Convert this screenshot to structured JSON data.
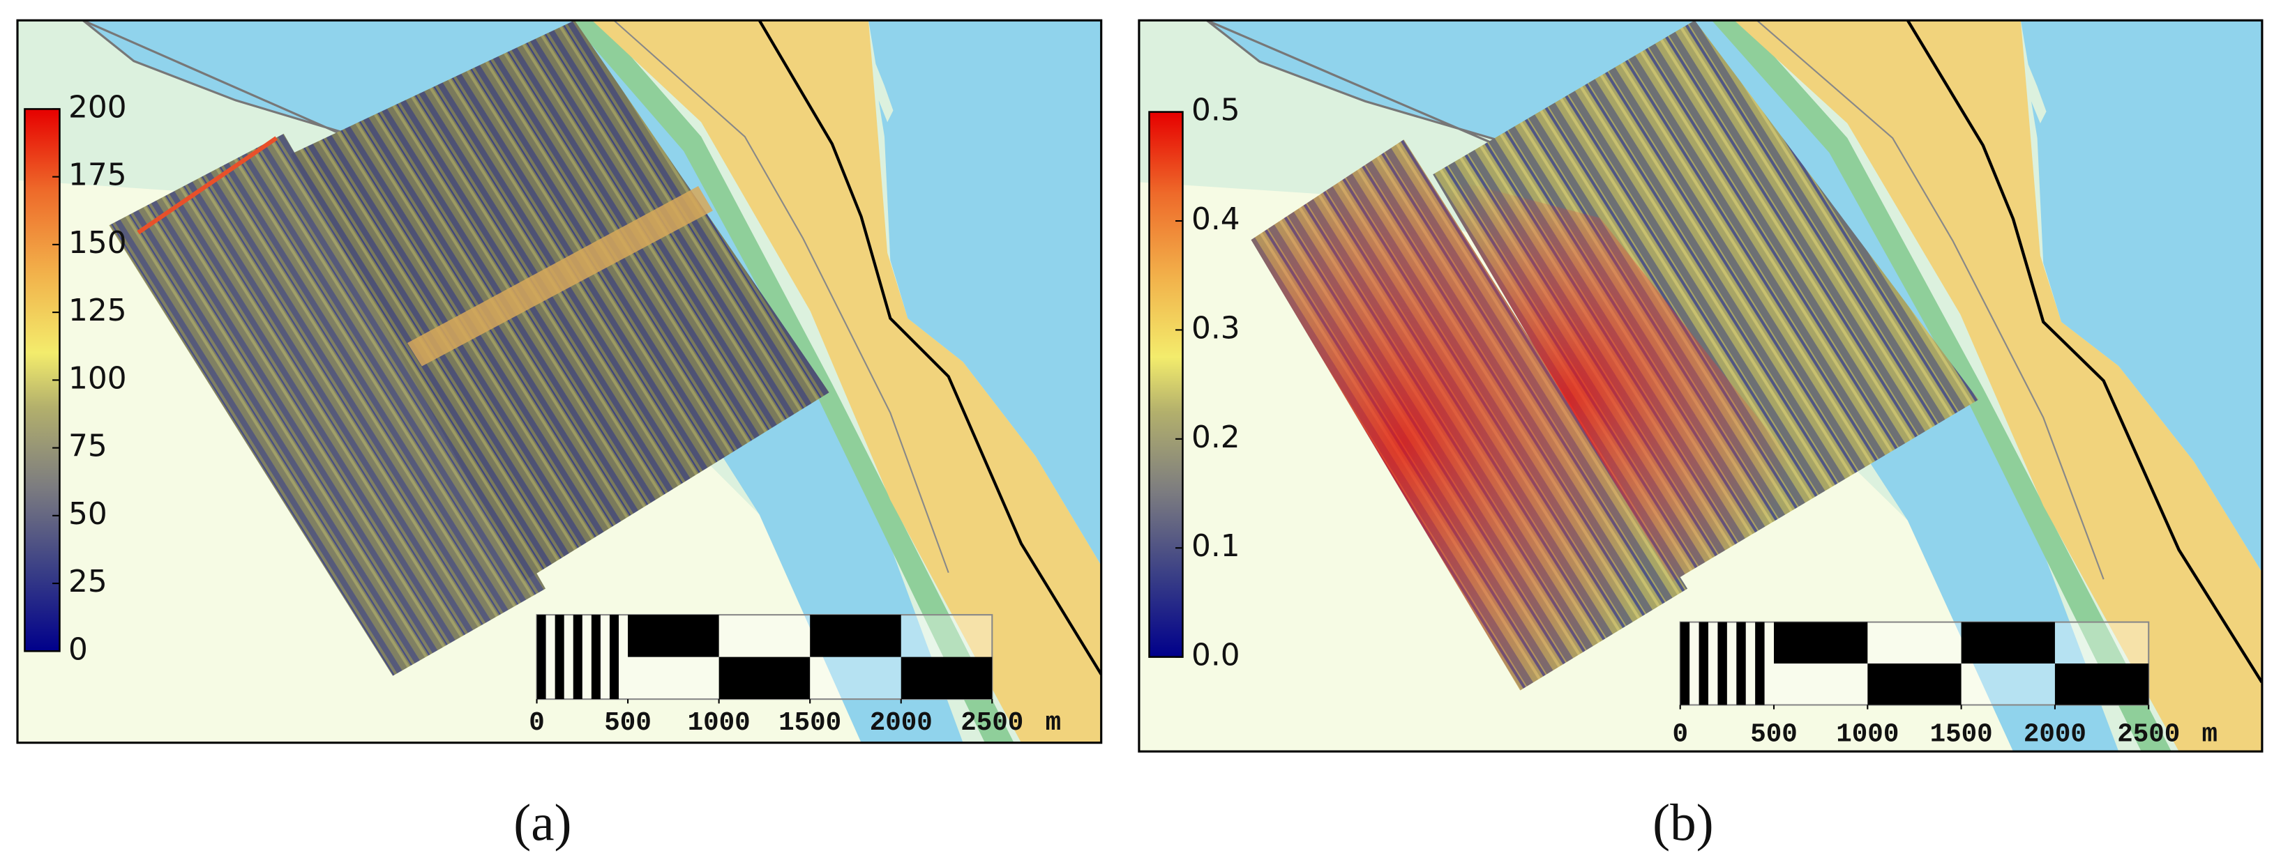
{
  "panels": [
    {
      "caption": "(a)",
      "colorbar": {
        "lim": [
          0,
          200
        ],
        "ticks": [
          0,
          25,
          50,
          75,
          100,
          125,
          150,
          175,
          200
        ]
      },
      "scalebar": {
        "lim": [
          0,
          2500
        ],
        "ticks": [
          0,
          500,
          1000,
          1500,
          2000,
          2500
        ],
        "unit": "m"
      }
    },
    {
      "caption": "(b)",
      "colorbar": {
        "lim": [
          0,
          0.5
        ],
        "ticks": [
          {
            "value": 0,
            "label": "0.0"
          },
          0.1,
          0.2,
          0.3,
          0.4,
          0.5
        ]
      },
      "scalebar": {
        "lim": [
          0,
          2500
        ],
        "ticks": [
          0,
          500,
          1000,
          1500,
          2000,
          2500
        ],
        "unit": "m"
      }
    }
  ]
}
